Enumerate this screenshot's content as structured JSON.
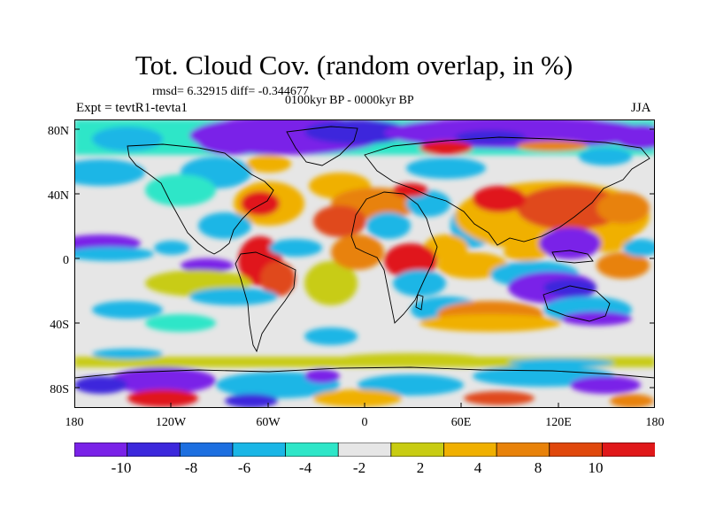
{
  "title": "Tot. Cloud Cov. (random overlap, in %)",
  "stats_text": "rmsd= 6.32915 diff= -0.344677",
  "period_text": "0100kyr BP - 0000kyr BP",
  "expt_text": "Expt = tevtR1-tevta1",
  "season_text": "JJA",
  "lat_labels": [
    "80N",
    "40N",
    "0",
    "40S",
    "80S"
  ],
  "lon_labels": [
    "180",
    "120W",
    "60W",
    "0",
    "60E",
    "120E",
    "180"
  ],
  "colorbar": {
    "colors": [
      "#7a22e8",
      "#3c28dc",
      "#1d6fe0",
      "#1ab6e6",
      "#2ee6c8",
      "#e6e6e6",
      "#c8cc12",
      "#f0b000",
      "#e8820a",
      "#e0480c",
      "#e0181a"
    ],
    "labels": [
      "-10",
      "-8",
      "-6",
      "-4",
      "-2",
      "2",
      "4",
      "8",
      "10"
    ]
  }
}
